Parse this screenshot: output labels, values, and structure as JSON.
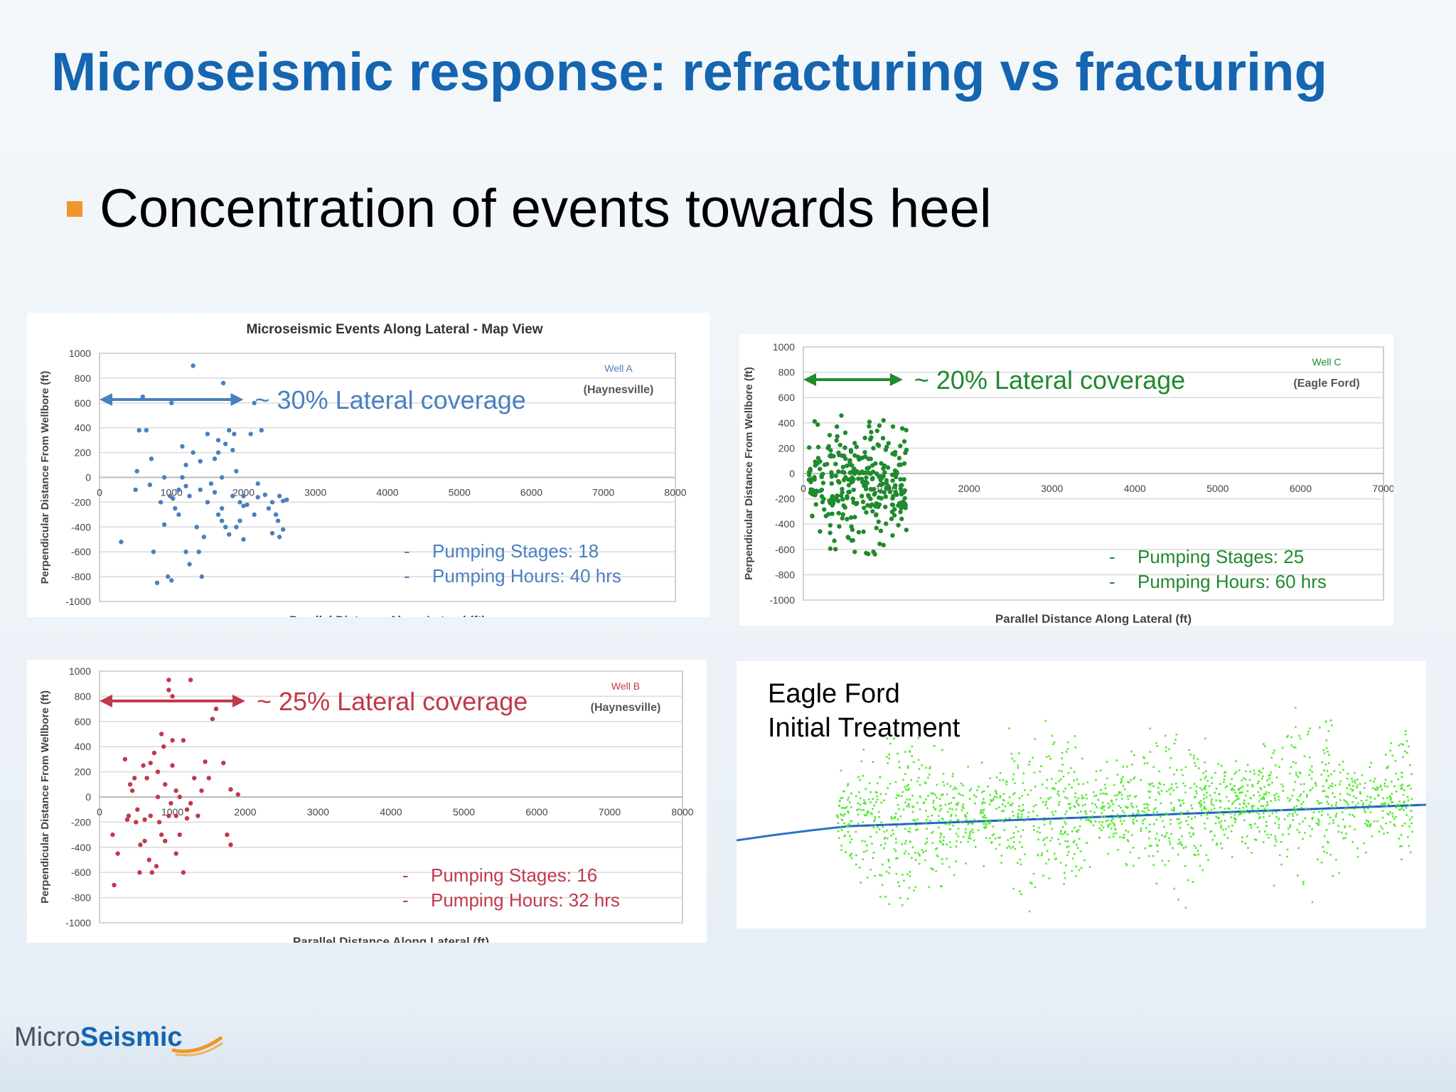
{
  "slide": {
    "title": "Microseismic response: refracturing vs fracturing",
    "bullet": "Concentration of events towards heel"
  },
  "logo": {
    "part1": "Micro",
    "part2": "Seismic"
  },
  "colors": {
    "title": "#1565b0",
    "bullet": "#f0962a",
    "wellA": "#4a7fc0",
    "wellB": "#c0394a",
    "wellC": "#1f8a2e",
    "eagleford": "#55e832"
  },
  "chart_data": [
    {
      "id": "wellA",
      "type": "scatter",
      "title": "Microseismic Events Along Lateral - Map View",
      "xlabel": "Parallel Distance Along Lateral (ft)",
      "ylabel": "Perpendicular Distance From Wellbore  (ft)",
      "xlim": [
        0,
        8000
      ],
      "ylim": [
        -1000,
        1000
      ],
      "xticks": [
        0,
        1000,
        2000,
        3000,
        4000,
        5000,
        6000,
        7000,
        8000
      ],
      "yticks": [
        1000,
        800,
        600,
        400,
        200,
        0,
        -200,
        -400,
        -600,
        -800,
        -1000
      ],
      "legend": [
        "Well A",
        "(Haynesville)"
      ],
      "annotation": "~ 30% Lateral coverage",
      "arrow": [
        0,
        2000
      ],
      "notes": [
        "Pumping Stages: 18",
        "Pumping Hours: 40 hrs"
      ],
      "color": "#4a7fc0",
      "points": [
        [
          300,
          -520
        ],
        [
          500,
          -100
        ],
        [
          520,
          50
        ],
        [
          550,
          380
        ],
        [
          650,
          380
        ],
        [
          600,
          650
        ],
        [
          700,
          -60
        ],
        [
          720,
          150
        ],
        [
          750,
          -600
        ],
        [
          800,
          -850
        ],
        [
          850,
          -200
        ],
        [
          900,
          0
        ],
        [
          900,
          -380
        ],
        [
          950,
          -800
        ],
        [
          980,
          -150
        ],
        [
          1000,
          -830
        ],
        [
          1000,
          600
        ],
        [
          1020,
          -170
        ],
        [
          1050,
          -250
        ],
        [
          1100,
          -300
        ],
        [
          1100,
          -100
        ],
        [
          1150,
          0
        ],
        [
          1150,
          250
        ],
        [
          1200,
          100
        ],
        [
          1200,
          -70
        ],
        [
          1200,
          -600
        ],
        [
          1250,
          -150
        ],
        [
          1300,
          900
        ],
        [
          1300,
          200
        ],
        [
          1350,
          -400
        ],
        [
          1380,
          -600
        ],
        [
          1400,
          -100
        ],
        [
          1400,
          130
        ],
        [
          1420,
          -800
        ],
        [
          1450,
          -480
        ],
        [
          1500,
          -200
        ],
        [
          1500,
          350
        ],
        [
          1550,
          -50
        ],
        [
          1600,
          150
        ],
        [
          1600,
          -120
        ],
        [
          1650,
          200
        ],
        [
          1650,
          300
        ],
        [
          1700,
          -350
        ],
        [
          1700,
          0
        ],
        [
          1700,
          -250
        ],
        [
          1750,
          270
        ],
        [
          1800,
          -460
        ],
        [
          1800,
          380
        ],
        [
          1850,
          -150
        ],
        [
          1900,
          -400
        ],
        [
          1900,
          50
        ],
        [
          1950,
          -200
        ],
        [
          1950,
          -350
        ],
        [
          2000,
          -150
        ],
        [
          1750,
          -400
        ],
        [
          1720,
          760
        ],
        [
          1850,
          220
        ],
        [
          1870,
          350
        ],
        [
          2000,
          -230
        ],
        [
          2050,
          -220
        ],
        [
          2100,
          350
        ],
        [
          2150,
          -300
        ],
        [
          2150,
          600
        ],
        [
          2200,
          -50
        ],
        [
          2200,
          -160
        ],
        [
          2250,
          380
        ],
        [
          2300,
          -140
        ],
        [
          2350,
          -250
        ],
        [
          2400,
          -200
        ],
        [
          2400,
          -450
        ],
        [
          2450,
          -300
        ],
        [
          2480,
          -350
        ],
        [
          2500,
          -480
        ],
        [
          2500,
          -150
        ],
        [
          2550,
          -420
        ],
        [
          2550,
          -190
        ],
        [
          2600,
          -180
        ],
        [
          2000,
          -500
        ],
        [
          1650,
          -300
        ],
        [
          1250,
          -700
        ]
      ]
    },
    {
      "id": "wellC",
      "type": "scatter",
      "xlabel": "Parallel Distance Along Lateral (ft)",
      "ylabel": "Perpendicular Distance From Wellbore  (ft)",
      "xlim": [
        0,
        7000
      ],
      "ylim": [
        -1000,
        1000
      ],
      "xticks": [
        0,
        1000,
        2000,
        3000,
        4000,
        5000,
        6000,
        7000
      ],
      "yticks": [
        1000,
        800,
        600,
        400,
        200,
        0,
        -200,
        -400,
        -600,
        -800,
        -1000
      ],
      "legend": [
        "Well C",
        "(Eagle Ford)"
      ],
      "annotation": "~ 20% Lateral coverage",
      "arrow": [
        0,
        1200
      ],
      "notes": [
        "Pumping Stages: 25",
        "Pumping Hours: 60 hrs"
      ],
      "color": "#1f8a2e",
      "cluster": {
        "xmin": 50,
        "xmax": 1250,
        "ymin": -750,
        "ymax": 620,
        "count": 320
      }
    },
    {
      "id": "wellB",
      "type": "scatter",
      "xlabel": "Parallel Distance Along Lateral (ft)",
      "ylabel": "Perpendicular Distance From Wellbore  (ft)",
      "xlim": [
        0,
        8000
      ],
      "ylim": [
        -1000,
        1000
      ],
      "xticks": [
        0,
        1000,
        2000,
        3000,
        4000,
        5000,
        6000,
        7000,
        8000
      ],
      "yticks": [
        1000,
        800,
        600,
        400,
        200,
        0,
        -200,
        -400,
        -600,
        -800,
        -1000
      ],
      "legend": [
        "Well B",
        "(Haynesville)"
      ],
      "annotation": "~ 25% Lateral coverage",
      "arrow": [
        0,
        2000
      ],
      "notes": [
        "Pumping Stages: 16",
        "Pumping Hours: 32 hrs"
      ],
      "color": "#c0394a",
      "points": [
        [
          200,
          -700
        ],
        [
          180,
          -300
        ],
        [
          250,
          -450
        ],
        [
          350,
          300
        ],
        [
          380,
          -180
        ],
        [
          400,
          -150
        ],
        [
          420,
          100
        ],
        [
          450,
          50
        ],
        [
          480,
          150
        ],
        [
          500,
          -200
        ],
        [
          520,
          -100
        ],
        [
          550,
          -600
        ],
        [
          600,
          250
        ],
        [
          620,
          -350
        ],
        [
          650,
          150
        ],
        [
          680,
          -500
        ],
        [
          700,
          270
        ],
        [
          720,
          -600
        ],
        [
          750,
          350
        ],
        [
          780,
          -550
        ],
        [
          800,
          0
        ],
        [
          800,
          200
        ],
        [
          820,
          -200
        ],
        [
          850,
          -300
        ],
        [
          850,
          500
        ],
        [
          880,
          400
        ],
        [
          900,
          100
        ],
        [
          950,
          -150
        ],
        [
          980,
          -50
        ],
        [
          1000,
          450
        ],
        [
          1000,
          250
        ],
        [
          1050,
          50
        ],
        [
          1050,
          -150
        ],
        [
          1100,
          0
        ],
        [
          1100,
          -300
        ],
        [
          1150,
          450
        ],
        [
          1200,
          -100
        ],
        [
          1250,
          -50
        ],
        [
          1300,
          150
        ],
        [
          1350,
          -150
        ],
        [
          1400,
          50
        ],
        [
          1450,
          280
        ],
        [
          1500,
          150
        ],
        [
          1550,
          620
        ],
        [
          1600,
          700
        ],
        [
          1700,
          270
        ],
        [
          1750,
          -300
        ],
        [
          1800,
          -380
        ],
        [
          1800,
          60
        ],
        [
          1900,
          20
        ],
        [
          950,
          850
        ],
        [
          950,
          930
        ],
        [
          1000,
          800
        ],
        [
          1250,
          930
        ],
        [
          1200,
          -170
        ],
        [
          1150,
          -600
        ],
        [
          700,
          -150
        ],
        [
          620,
          -180
        ],
        [
          560,
          -380
        ],
        [
          1050,
          -450
        ],
        [
          900,
          -350
        ]
      ]
    },
    {
      "id": "eagleford-initial",
      "type": "scatter",
      "labels": [
        "Eagle Ford",
        "Initial Treatment"
      ],
      "color": "#55e832"
    }
  ]
}
